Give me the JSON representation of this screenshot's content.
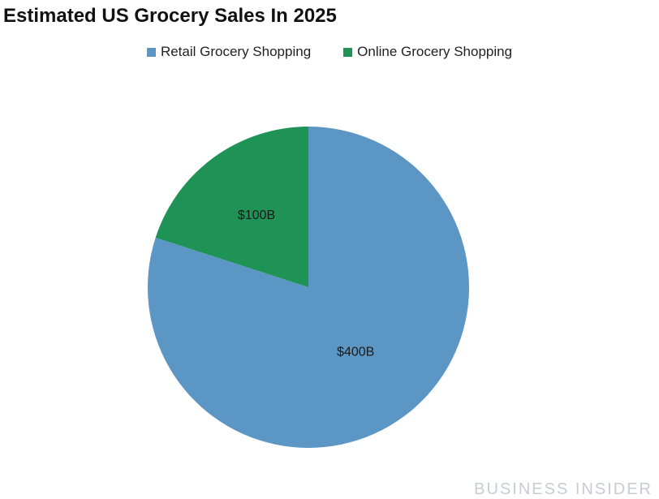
{
  "chart_data": {
    "type": "pie",
    "title": "Estimated US Grocery Sales In 2025",
    "legend_position": "top",
    "slices": [
      {
        "name": "Retail Grocery Shopping",
        "value": 400,
        "label": "$400B",
        "color": "#5b96c4"
      },
      {
        "name": "Online Grocery Shopping",
        "value": 100,
        "label": "$100B",
        "color": "#1e9355"
      }
    ]
  },
  "watermark": "BUSINESS INSIDER"
}
